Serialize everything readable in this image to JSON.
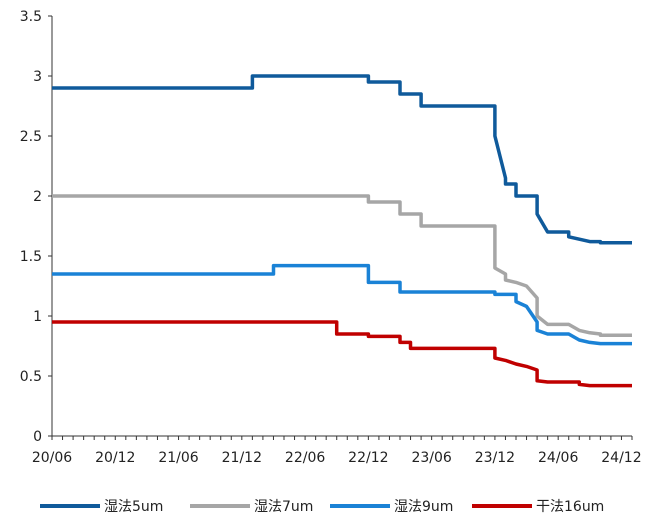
{
  "chart_data": {
    "type": "line",
    "title": "",
    "xlabel": "",
    "ylabel": "",
    "ylim": [
      0,
      3.5
    ],
    "yticks": [
      0,
      0.5,
      1,
      1.5,
      2,
      2.5,
      3,
      3.5
    ],
    "ytick_labels": [
      "0",
      "0.5",
      "1",
      "1.5",
      "2",
      "2.5",
      "3",
      "3.5"
    ],
    "x_tick_labels": [
      "20/06",
      "20/12",
      "21/06",
      "21/12",
      "22/06",
      "22/12",
      "23/06",
      "23/12",
      "24/06",
      "24/12"
    ],
    "x_range": [
      "2020-06",
      "2025-01"
    ],
    "grid": false,
    "legend_position": "bottom",
    "series": [
      {
        "name": "湿法5um",
        "color": "#0f5a9b",
        "points": [
          [
            "2020-06",
            2.9
          ],
          [
            "2022-01",
            2.9
          ],
          [
            "2022-01",
            3.0
          ],
          [
            "2022-12",
            3.0
          ],
          [
            "2022-12",
            2.95
          ],
          [
            "2023-03",
            2.95
          ],
          [
            "2023-03",
            2.85
          ],
          [
            "2023-05",
            2.85
          ],
          [
            "2023-05",
            2.75
          ],
          [
            "2023-12",
            2.75
          ],
          [
            "2023-12",
            2.5
          ],
          [
            "2024-01",
            2.15
          ],
          [
            "2024-01",
            2.1
          ],
          [
            "2024-02",
            2.1
          ],
          [
            "2024-02",
            2.0
          ],
          [
            "2024-04",
            2.0
          ],
          [
            "2024-04",
            1.85
          ],
          [
            "2024-05",
            1.7
          ],
          [
            "2024-07",
            1.7
          ],
          [
            "2024-07",
            1.66
          ],
          [
            "2024-08",
            1.64
          ],
          [
            "2024-09",
            1.62
          ],
          [
            "2024-10",
            1.62
          ],
          [
            "2024-10",
            1.61
          ],
          [
            "2025-01",
            1.61
          ]
        ]
      },
      {
        "name": "湿法7um",
        "color": "#a6a6a6",
        "points": [
          [
            "2020-06",
            2.0
          ],
          [
            "2022-12",
            2.0
          ],
          [
            "2022-12",
            1.95
          ],
          [
            "2023-03",
            1.95
          ],
          [
            "2023-03",
            1.85
          ],
          [
            "2023-05",
            1.85
          ],
          [
            "2023-05",
            1.75
          ],
          [
            "2023-12",
            1.75
          ],
          [
            "2023-12",
            1.4
          ],
          [
            "2024-01",
            1.35
          ],
          [
            "2024-01",
            1.3
          ],
          [
            "2024-02",
            1.28
          ],
          [
            "2024-03",
            1.25
          ],
          [
            "2024-04",
            1.15
          ],
          [
            "2024-04",
            1.0
          ],
          [
            "2024-05",
            0.93
          ],
          [
            "2024-07",
            0.93
          ],
          [
            "2024-08",
            0.88
          ],
          [
            "2024-09",
            0.86
          ],
          [
            "2024-10",
            0.85
          ],
          [
            "2024-10",
            0.84
          ],
          [
            "2025-01",
            0.84
          ]
        ]
      },
      {
        "name": "湿法9um",
        "color": "#1a82d6",
        "points": [
          [
            "2020-06",
            1.35
          ],
          [
            "2022-03",
            1.35
          ],
          [
            "2022-03",
            1.42
          ],
          [
            "2022-12",
            1.42
          ],
          [
            "2022-12",
            1.28
          ],
          [
            "2023-03",
            1.28
          ],
          [
            "2023-03",
            1.2
          ],
          [
            "2023-12",
            1.2
          ],
          [
            "2023-12",
            1.18
          ],
          [
            "2024-02",
            1.18
          ],
          [
            "2024-02",
            1.12
          ],
          [
            "2024-03",
            1.08
          ],
          [
            "2024-04",
            0.95
          ],
          [
            "2024-04",
            0.88
          ],
          [
            "2024-05",
            0.85
          ],
          [
            "2024-07",
            0.85
          ],
          [
            "2024-08",
            0.8
          ],
          [
            "2024-09",
            0.78
          ],
          [
            "2024-10",
            0.77
          ],
          [
            "2025-01",
            0.77
          ]
        ]
      },
      {
        "name": "干法16um",
        "color": "#c00000",
        "points": [
          [
            "2020-06",
            0.95
          ],
          [
            "2022-09",
            0.95
          ],
          [
            "2022-09",
            0.85
          ],
          [
            "2022-12",
            0.85
          ],
          [
            "2022-12",
            0.83
          ],
          [
            "2023-03",
            0.83
          ],
          [
            "2023-03",
            0.78
          ],
          [
            "2023-04",
            0.78
          ],
          [
            "2023-04",
            0.73
          ],
          [
            "2023-12",
            0.73
          ],
          [
            "2023-12",
            0.65
          ],
          [
            "2024-01",
            0.63
          ],
          [
            "2024-02",
            0.6
          ],
          [
            "2024-03",
            0.58
          ],
          [
            "2024-04",
            0.55
          ],
          [
            "2024-04",
            0.46
          ],
          [
            "2024-05",
            0.45
          ],
          [
            "2024-08",
            0.45
          ],
          [
            "2024-08",
            0.43
          ],
          [
            "2024-09",
            0.42
          ],
          [
            "2025-01",
            0.42
          ]
        ]
      }
    ]
  }
}
